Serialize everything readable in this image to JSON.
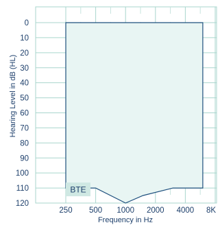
{
  "chart_data": {
    "type": "area",
    "xlabel": "Frequency in Hz",
    "ylabel": "Hearing Level in dB (HL)",
    "x_scale": "log",
    "y_inverted": true,
    "x_ticks": [
      250,
      500,
      1000,
      2000,
      4000,
      8000
    ],
    "x_tick_labels": [
      "250",
      "500",
      "1000",
      "2000",
      "4000",
      "8K"
    ],
    "y_ticks": [
      0,
      10,
      20,
      30,
      40,
      50,
      60,
      70,
      80,
      90,
      100,
      110,
      120
    ],
    "y_tick_labels": [
      "0",
      "10",
      "20",
      "30",
      "40",
      "50",
      "60",
      "70",
      "80",
      "90",
      "100",
      "110",
      "120"
    ],
    "ylim": [
      0,
      120
    ],
    "grid": true,
    "colors": {
      "axis_text": "#1d3f6b",
      "grid_line": "#a9d6cd",
      "minor_grid": "#c7e4de",
      "fit_range_fill": "#e8f5f3",
      "fit_range_stroke": "#1d4f7d",
      "label_fill": "#cfe8e3"
    },
    "series": [
      {
        "name": "BTE",
        "points": [
          {
            "x": 250,
            "y": 0
          },
          {
            "x": 6000,
            "y": 0
          },
          {
            "x": 6000,
            "y": 110
          },
          {
            "x": 3000,
            "y": 110
          },
          {
            "x": 1500,
            "y": 115
          },
          {
            "x": 1000,
            "y": 120
          },
          {
            "x": 500,
            "y": 110
          },
          {
            "x": 250,
            "y": 110
          }
        ]
      }
    ]
  }
}
